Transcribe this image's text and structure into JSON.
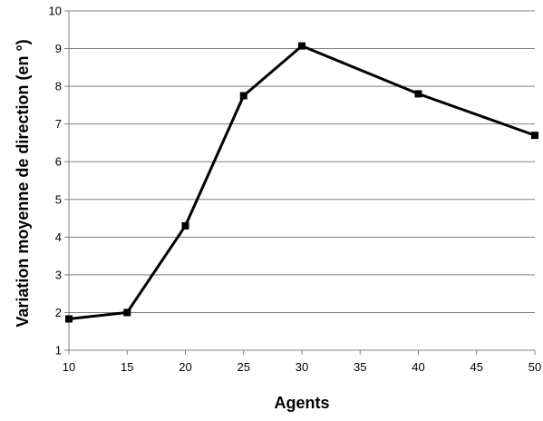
{
  "chart_data": {
    "type": "line",
    "title": "",
    "xlabel": "Agents",
    "ylabel": "Variation moyenne de direction (en °)",
    "categories": [
      "10",
      "15",
      "20",
      "25",
      "30",
      "35",
      "40",
      "45",
      "50"
    ],
    "xlim": [
      10,
      50
    ],
    "ylim": [
      1,
      10
    ],
    "yticks": [
      1,
      2,
      3,
      4,
      5,
      6,
      7,
      8,
      9,
      10
    ],
    "grid": "horizontal",
    "legend": "none",
    "series": [
      {
        "marker": "square",
        "color": "#000000",
        "x": [
          10,
          15,
          20,
          25,
          30,
          40,
          50
        ],
        "values": [
          1.83,
          2.0,
          4.3,
          7.75,
          9.07,
          7.8,
          6.7
        ]
      }
    ]
  }
}
